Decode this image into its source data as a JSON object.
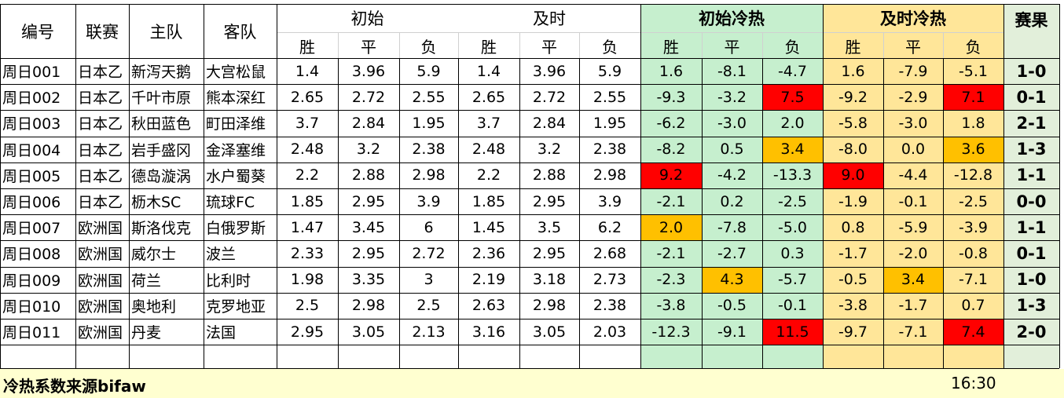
{
  "header": {
    "id": "编号",
    "league": "联赛",
    "home": "主队",
    "away": "客队",
    "initial": "初始",
    "live": "及时",
    "initial_heat": "初始冷热",
    "live_heat": "及时冷热",
    "result": "赛果",
    "win": "胜",
    "draw": "平",
    "loss": "负"
  },
  "rows": [
    {
      "id": "周日001",
      "league": "日本乙",
      "home": "新泻天鹅",
      "away": "大宫松鼠",
      "i1": "1.4",
      "i2": "3.96",
      "i3": "5.9",
      "l1": "1.4",
      "l2": "3.96",
      "l3": "5.9",
      "h1": "1.6",
      "h2": "-8.1",
      "h3": "-4.7",
      "j1": "1.6",
      "j2": "-7.9",
      "j3": "-5.1",
      "result": "1-0"
    },
    {
      "id": "周日002",
      "league": "日本乙",
      "home": "千叶市原",
      "away": "熊本深红",
      "i1": "2.65",
      "i2": "2.72",
      "i3": "2.55",
      "l1": "2.65",
      "l2": "2.72",
      "l3": "2.55",
      "h1": "-9.3",
      "h2": "-3.2",
      "h3": "7.5",
      "j1": "-9.2",
      "j2": "-2.9",
      "j3": "7.1",
      "result": "0-1"
    },
    {
      "id": "周日003",
      "league": "日本乙",
      "home": "秋田蓝色",
      "away": "町田泽维",
      "i1": "3.7",
      "i2": "2.84",
      "i3": "1.95",
      "l1": "3.7",
      "l2": "2.84",
      "l3": "1.95",
      "h1": "-6.2",
      "h2": "-3.0",
      "h3": "2.0",
      "j1": "-5.8",
      "j2": "-3.0",
      "j3": "1.8",
      "result": "2-1"
    },
    {
      "id": "周日004",
      "league": "日本乙",
      "home": "岩手盛冈",
      "away": "金泽塞维",
      "i1": "2.48",
      "i2": "3.2",
      "i3": "2.38",
      "l1": "2.48",
      "l2": "3.2",
      "l3": "2.38",
      "h1": "-8.2",
      "h2": "0.5",
      "h3": "3.4",
      "j1": "-8.0",
      "j2": "0.0",
      "j3": "3.6",
      "result": "1-3"
    },
    {
      "id": "周日005",
      "league": "日本乙",
      "home": "德岛漩涡",
      "away": "水户蜀葵",
      "i1": "2.2",
      "i2": "2.88",
      "i3": "2.98",
      "l1": "2.2",
      "l2": "2.88",
      "l3": "2.98",
      "h1": "9.2",
      "h2": "-4.2",
      "h3": "-13.3",
      "j1": "9.0",
      "j2": "-4.4",
      "j3": "-12.8",
      "result": "1-1"
    },
    {
      "id": "周日006",
      "league": "日本乙",
      "home": "枥木SC",
      "away": "琉球FC",
      "i1": "1.85",
      "i2": "2.95",
      "i3": "3.9",
      "l1": "1.85",
      "l2": "2.95",
      "l3": "3.9",
      "h1": "-2.1",
      "h2": "0.2",
      "h3": "-2.5",
      "j1": "-1.9",
      "j2": "-0.1",
      "j3": "-2.5",
      "result": "0-0"
    },
    {
      "id": "周日007",
      "league": "欧洲国",
      "home": "斯洛伐克",
      "away": "白俄罗斯",
      "i1": "1.47",
      "i2": "3.45",
      "i3": "6",
      "l1": "1.45",
      "l2": "3.5",
      "l3": "6.2",
      "h1": "2.0",
      "h2": "-7.8",
      "h3": "-5.0",
      "j1": "0.8",
      "j2": "-5.9",
      "j3": "-3.9",
      "result": "1-1"
    },
    {
      "id": "周日008",
      "league": "欧洲国",
      "home": "威尔士",
      "away": "波兰",
      "i1": "2.33",
      "i2": "2.95",
      "i3": "2.72",
      "l1": "2.36",
      "l2": "2.95",
      "l3": "2.68",
      "h1": "-2.1",
      "h2": "-2.7",
      "h3": "0.3",
      "j1": "-1.7",
      "j2": "-2.0",
      "j3": "-0.8",
      "result": "0-1"
    },
    {
      "id": "周日009",
      "league": "欧洲国",
      "home": "荷兰",
      "away": "比利时",
      "i1": "1.98",
      "i2": "3.35",
      "i3": "3",
      "l1": "2.19",
      "l2": "3.18",
      "l3": "2.73",
      "h1": "-2.3",
      "h2": "4.3",
      "h3": "-5.7",
      "j1": "-0.5",
      "j2": "3.4",
      "j3": "-7.1",
      "result": "1-0"
    },
    {
      "id": "周日010",
      "league": "欧洲国",
      "home": "奥地利",
      "away": "克罗地亚",
      "i1": "2.5",
      "i2": "2.98",
      "i3": "2.5",
      "l1": "2.63",
      "l2": "2.98",
      "l3": "2.38",
      "h1": "-3.8",
      "h2": "-0.5",
      "h3": "-0.1",
      "j1": "-3.8",
      "j2": "-1.7",
      "j3": "0.7",
      "result": "1-3"
    },
    {
      "id": "周日011",
      "league": "欧洲国",
      "home": "丹麦",
      "away": "法国",
      "i1": "2.95",
      "i2": "3.05",
      "i3": "2.13",
      "l1": "3.16",
      "l2": "3.05",
      "l3": "2.03",
      "h1": "-12.3",
      "h2": "-9.1",
      "h3": "11.5",
      "j1": "-9.7",
      "j2": "-7.1",
      "j3": "7.4",
      "result": "2-0"
    }
  ],
  "highlights": [
    {
      "row": 1,
      "col": "h3",
      "color": "#ff0000"
    },
    {
      "row": 1,
      "col": "j3",
      "color": "#ff0000"
    },
    {
      "row": 3,
      "col": "h3",
      "color": "#ffc000"
    },
    {
      "row": 3,
      "col": "j3",
      "color": "#ffc000"
    },
    {
      "row": 4,
      "col": "h1",
      "color": "#ff0000"
    },
    {
      "row": 4,
      "col": "j1",
      "color": "#ff0000"
    },
    {
      "row": 6,
      "col": "h1",
      "color": "#ffc000"
    },
    {
      "row": 8,
      "col": "h2",
      "color": "#ffc000"
    },
    {
      "row": 8,
      "col": "j2",
      "color": "#ffc000"
    },
    {
      "row": 10,
      "col": "h3",
      "color": "#ff0000"
    },
    {
      "row": 10,
      "col": "j3",
      "color": "#ff0000"
    }
  ],
  "colors": {
    "initial_heat_bg": "#c6efce",
    "live_heat_bg": "#ffe699",
    "result_bg": "#e2efda",
    "footer_bg": "#ffffd0",
    "hot": "#ff0000",
    "warm": "#ffc000"
  },
  "footer": {
    "note": "冷热系数来源bifaw",
    "time": "16:30"
  }
}
